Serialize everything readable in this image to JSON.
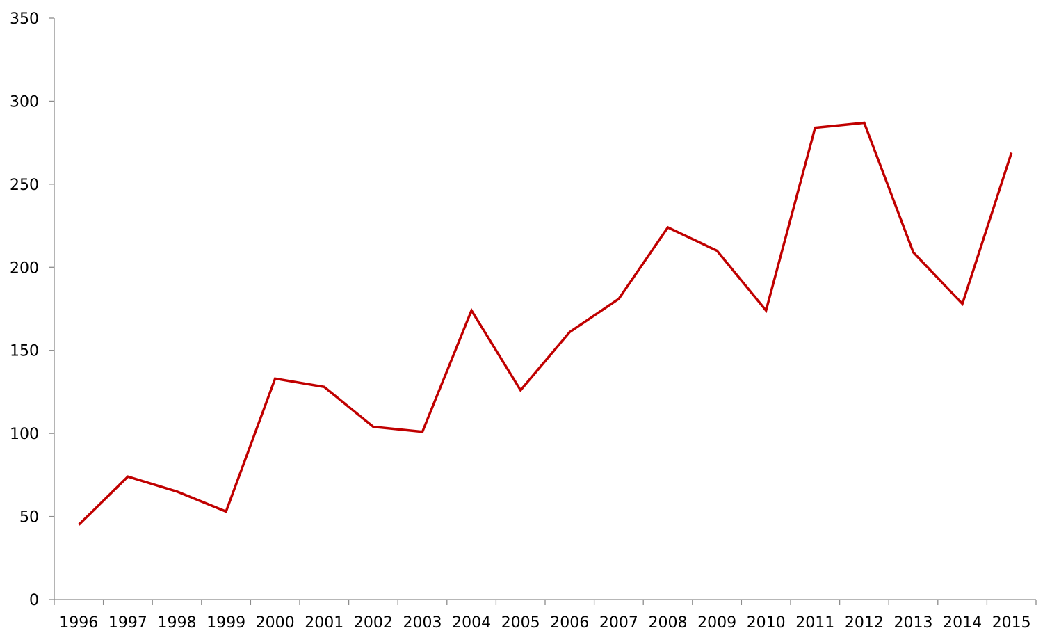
{
  "chart_data": {
    "type": "line",
    "title": "",
    "xlabel": "",
    "ylabel": "",
    "categories": [
      "1996",
      "1997",
      "1998",
      "1999",
      "2000",
      "2001",
      "2002",
      "2003",
      "2004",
      "2005",
      "2006",
      "2007",
      "2008",
      "2009",
      "2010",
      "2011",
      "2012",
      "2013",
      "2014",
      "2015"
    ],
    "series": [
      {
        "values": [
          45,
          74,
          65,
          53,
          133,
          128,
          104,
          101,
          174,
          126,
          161,
          181,
          224,
          210,
          174,
          284,
          287,
          209,
          178,
          269
        ],
        "color": "#c00000"
      }
    ],
    "ylim": [
      0,
      350
    ],
    "yticks": [
      0,
      50,
      100,
      150,
      200,
      250,
      300,
      350
    ],
    "grid": false,
    "legend": "none"
  }
}
